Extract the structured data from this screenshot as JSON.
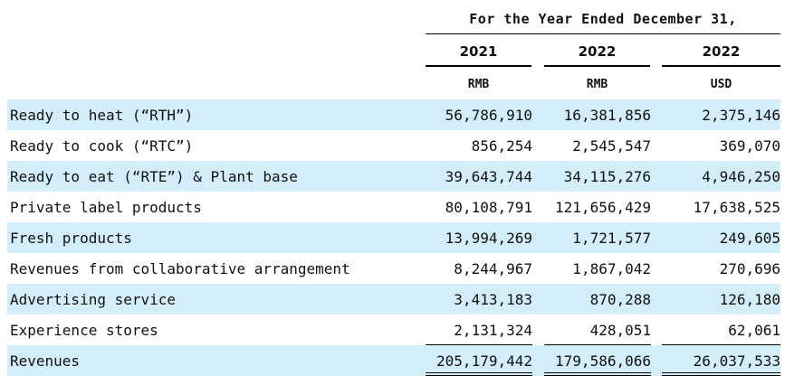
{
  "header": {
    "period": "For the Year Ended December 31,",
    "years": [
      "2021",
      "2022",
      "2022"
    ],
    "units": [
      "RMB",
      "RMB",
      "USD"
    ]
  },
  "rows": [
    {
      "label": "Ready to heat (“RTH”)",
      "values": [
        "56,786,910",
        "16,381,856",
        "2,375,146"
      ]
    },
    {
      "label": "Ready to cook (“RTC”)",
      "values": [
        "856,254",
        "2,545,547",
        "369,070"
      ]
    },
    {
      "label": "Ready to eat (“RTE”) & Plant base",
      "values": [
        "39,643,744",
        "34,115,276",
        "4,946,250"
      ]
    },
    {
      "label": "Private label products",
      "values": [
        "80,108,791",
        "121,656,429",
        "17,638,525"
      ]
    },
    {
      "label": "Fresh products",
      "values": [
        "13,994,269",
        "1,721,577",
        "249,605"
      ]
    },
    {
      "label": "Revenues from collaborative arrangement",
      "values": [
        "8,244,967",
        "1,867,042",
        "270,696"
      ]
    },
    {
      "label": "Advertising service",
      "values": [
        "3,413,183",
        "870,288",
        "126,180"
      ]
    },
    {
      "label": "Experience stores",
      "values": [
        "2,131,324",
        "428,051",
        "62,061"
      ]
    },
    {
      "label": "Revenues",
      "values": [
        "205,179,442",
        "179,586,066",
        "26,037,533"
      ]
    }
  ],
  "colors": {
    "row_shade": "#d4eef9",
    "text": "#111111"
  }
}
